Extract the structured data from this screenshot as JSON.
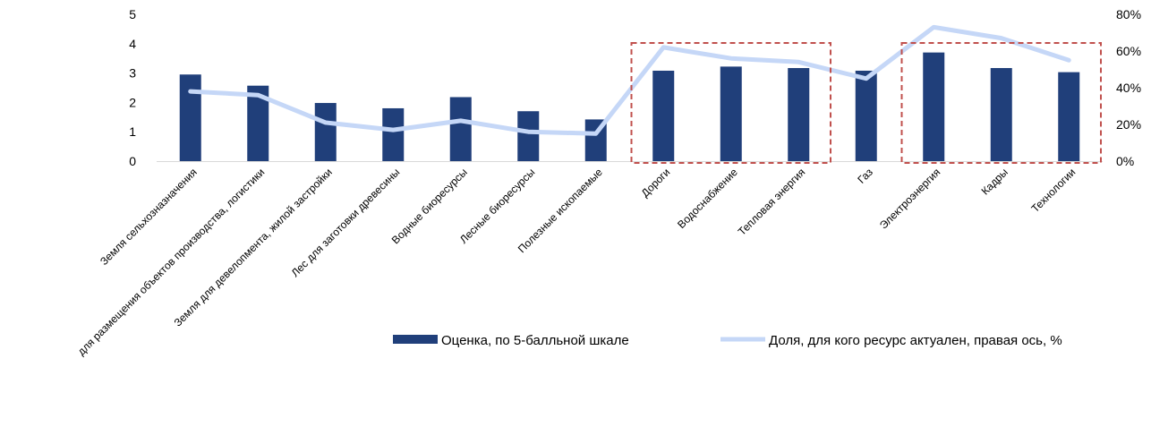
{
  "chart_data": {
    "type": "bar",
    "title": "",
    "categories": [
      "Земля сельхозназначения",
      "для размещения объектов производства, логистики",
      "Земля для девелопмента, жилой застройки",
      "Лес для заготовки древесины",
      "Водные биоресурсы",
      "Лесные биоресурсы",
      "Полезные ископаемые",
      "Дороги",
      "Водоснабжение",
      "Тепловая энергия",
      "Газ",
      "Электроэнергия",
      "Кадры",
      "Технологии"
    ],
    "series": [
      {
        "name": "Оценка, по 5-балльной шкале",
        "type": "bar",
        "axis": "left",
        "color": "#203f7a",
        "values": [
          2.95,
          2.57,
          1.98,
          1.8,
          2.18,
          1.7,
          1.42,
          3.08,
          3.22,
          3.17,
          3.08,
          3.7,
          3.17,
          3.03
        ]
      },
      {
        "name": "Доля, для кого ресурс актуален, правая ось, %",
        "type": "line",
        "axis": "right",
        "color": "#c5d7f7",
        "values": [
          38,
          36,
          21,
          17,
          22,
          16,
          15,
          62,
          56,
          54,
          45,
          73,
          67,
          55
        ]
      }
    ],
    "y_left": {
      "ticks": [
        "0",
        "1",
        "2",
        "3",
        "4",
        "5"
      ],
      "min": 0,
      "max": 5
    },
    "y_right": {
      "ticks": [
        "0%",
        "20%",
        "40%",
        "60%",
        "80%"
      ],
      "min": 0,
      "max": 80
    },
    "highlight_groups": [
      {
        "from": 7,
        "to": 9,
        "style": "dashed",
        "color": "#c0504d"
      },
      {
        "from": 11,
        "to": 13,
        "style": "dashed",
        "color": "#c0504d"
      }
    ],
    "grid": false,
    "legend_position": "bottom"
  }
}
